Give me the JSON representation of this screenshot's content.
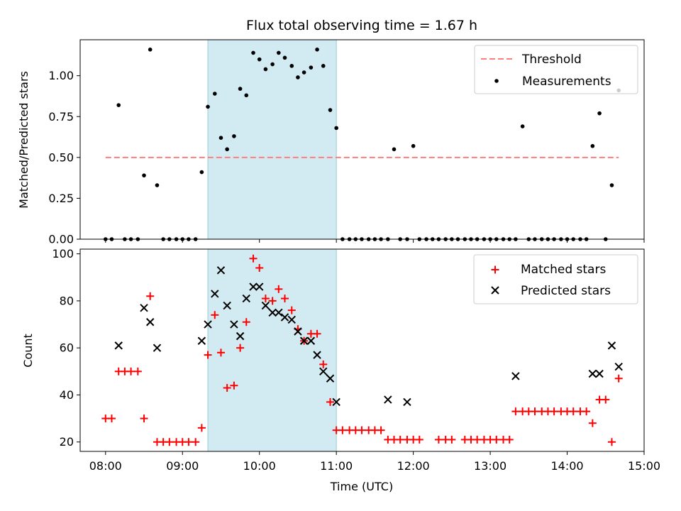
{
  "colors": {
    "threshold": "#ff7f7f",
    "matched": "#ff0000",
    "predicted": "#000000",
    "measurement": "#000000",
    "shade": "#add8e6"
  },
  "chart_data": [
    {
      "type": "scatter",
      "title": "Flux total observing time = 1.67 h",
      "xlabel": "",
      "ylabel": "Matched/Predicted stars",
      "ylim": [
        0,
        1.22
      ],
      "yticks": [
        0.0,
        0.25,
        0.5,
        0.75,
        1.0
      ],
      "ytick_labels": [
        "0.00",
        "0.25",
        "0.50",
        "0.75",
        "1.00"
      ],
      "xlim": [
        7.67,
        15.0
      ],
      "shaded_region": [
        9.33,
        11.0
      ],
      "threshold": {
        "name": "Threshold",
        "y": 0.5,
        "x_range": [
          8.0,
          14.67
        ]
      },
      "series": [
        {
          "name": "Measurements",
          "x": [
            8.0,
            8.08,
            8.17,
            8.25,
            8.33,
            8.42,
            8.5,
            8.58,
            8.67,
            8.75,
            8.83,
            8.92,
            9.0,
            9.08,
            9.17,
            9.25,
            9.33,
            9.42,
            9.5,
            9.58,
            9.67,
            9.75,
            9.83,
            9.92,
            10.0,
            10.08,
            10.17,
            10.25,
            10.33,
            10.42,
            10.5,
            10.58,
            10.67,
            10.75,
            10.83,
            10.92,
            11.0,
            11.08,
            11.17,
            11.25,
            11.33,
            11.42,
            11.5,
            11.58,
            11.67,
            11.75,
            11.83,
            11.92,
            12.0,
            12.08,
            12.17,
            12.25,
            12.33,
            12.42,
            12.5,
            12.58,
            12.67,
            12.75,
            12.83,
            12.92,
            13.0,
            13.08,
            13.17,
            13.25,
            13.33,
            13.42,
            13.5,
            13.58,
            13.67,
            13.75,
            13.83,
            13.92,
            14.0,
            14.08,
            14.17,
            14.25,
            14.33,
            14.42,
            14.5,
            14.58,
            14.67
          ],
          "y": [
            0,
            0,
            0.82,
            0,
            0,
            0,
            0.39,
            1.16,
            0.33,
            0,
            0,
            0,
            0,
            0,
            0,
            0.41,
            0.81,
            0.89,
            0.62,
            0.55,
            0.63,
            0.92,
            0.88,
            1.14,
            1.1,
            1.04,
            1.07,
            1.14,
            1.11,
            1.06,
            0.99,
            1.02,
            1.05,
            1.16,
            1.06,
            0.79,
            0.68,
            0,
            0,
            0,
            0,
            0,
            0,
            0,
            0,
            0.55,
            0,
            0,
            0.57,
            0,
            0,
            0,
            0,
            0,
            0,
            0,
            0,
            0,
            0,
            0,
            0,
            0,
            0,
            0,
            0,
            0.69,
            0,
            0,
            0,
            0,
            0,
            0,
            0,
            0,
            0,
            0,
            0.57,
            0.77,
            0,
            0.33,
            0.91
          ]
        }
      ],
      "legend": {
        "position": "top-right",
        "entries": [
          "Threshold",
          "Measurements"
        ]
      }
    },
    {
      "type": "scatter",
      "title": "",
      "xlabel": "Time (UTC)",
      "ylabel": "Count",
      "ylim": [
        16,
        102
      ],
      "yticks": [
        20,
        40,
        60,
        80,
        100
      ],
      "ytick_labels": [
        "20",
        "40",
        "60",
        "80",
        "100"
      ],
      "xlim": [
        7.67,
        15.0
      ],
      "xticks": [
        8,
        9,
        10,
        11,
        12,
        13,
        14,
        15
      ],
      "xtick_labels": [
        "08:00",
        "09:00",
        "10:00",
        "11:00",
        "12:00",
        "13:00",
        "14:00",
        "15:00"
      ],
      "shaded_region": [
        9.33,
        11.0
      ],
      "series": [
        {
          "name": "Matched stars",
          "x": [
            8.0,
            8.08,
            8.17,
            8.25,
            8.33,
            8.42,
            8.5,
            8.58,
            8.67,
            8.75,
            8.83,
            8.92,
            9.0,
            9.08,
            9.17,
            9.25,
            9.33,
            9.42,
            9.5,
            9.58,
            9.67,
            9.75,
            9.83,
            9.92,
            10.0,
            10.08,
            10.17,
            10.25,
            10.33,
            10.42,
            10.5,
            10.58,
            10.67,
            10.75,
            10.83,
            10.92,
            11.0,
            11.08,
            11.17,
            11.25,
            11.33,
            11.42,
            11.5,
            11.58,
            11.67,
            11.75,
            11.83,
            11.92,
            12.0,
            12.08,
            12.17,
            12.25,
            12.33,
            12.42,
            12.5,
            12.58,
            12.67,
            12.75,
            12.83,
            12.92,
            13.0,
            13.08,
            13.17,
            13.25,
            13.33,
            13.42,
            13.5,
            13.58,
            13.67,
            13.75,
            13.83,
            13.92,
            14.0,
            14.08,
            14.17,
            14.25,
            14.33,
            14.42,
            14.5,
            14.58,
            14.67
          ],
          "y": [
            30,
            30,
            50,
            50,
            50,
            50,
            30,
            82,
            20,
            20,
            20,
            20,
            20,
            20,
            20,
            26,
            57,
            74,
            58,
            43,
            44,
            60,
            71,
            98,
            94,
            81,
            80,
            85,
            81,
            76,
            68,
            63,
            66,
            66,
            53,
            37,
            25,
            25,
            25,
            25,
            25,
            25,
            25,
            25,
            21,
            21,
            21,
            21,
            21,
            21,
            null,
            null,
            21,
            21,
            21,
            null,
            21,
            21,
            21,
            21,
            21,
            21,
            21,
            21,
            33,
            33,
            33,
            33,
            33,
            33,
            33,
            33,
            33,
            33,
            33,
            33,
            28,
            38,
            38,
            20,
            47
          ]
        },
        {
          "name": "Predicted stars",
          "x": [
            8.17,
            8.5,
            8.58,
            8.67,
            9.25,
            9.33,
            9.42,
            9.5,
            9.58,
            9.67,
            9.75,
            9.83,
            9.92,
            10.0,
            10.08,
            10.17,
            10.25,
            10.33,
            10.42,
            10.5,
            10.58,
            10.67,
            10.75,
            10.83,
            10.92,
            11.0,
            11.67,
            11.92,
            13.33,
            14.33,
            14.42,
            14.58,
            14.67
          ],
          "y": [
            61,
            77,
            71,
            60,
            63,
            70,
            83,
            93,
            78,
            70,
            65,
            81,
            86,
            86,
            78,
            75,
            75,
            73,
            72,
            67,
            63,
            63,
            57,
            50,
            47,
            37,
            38,
            37,
            48,
            49,
            49,
            61,
            52
          ]
        }
      ],
      "legend": {
        "position": "top-right",
        "entries": [
          "Matched stars",
          "Predicted stars"
        ]
      }
    }
  ]
}
